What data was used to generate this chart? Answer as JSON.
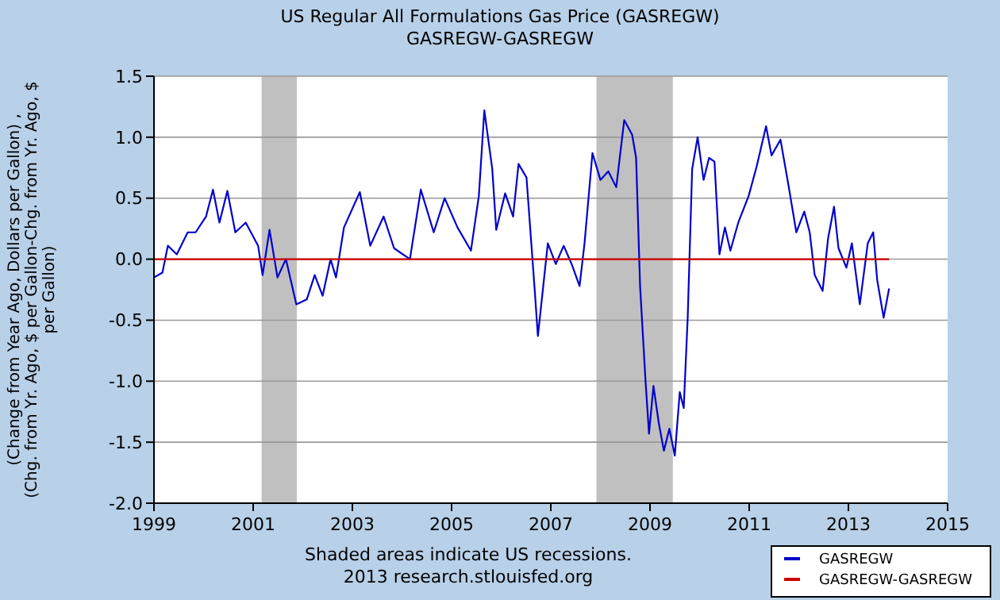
{
  "chart_data": {
    "type": "line",
    "title": "US Regular All Formulations Gas Price (GASREGW)",
    "subtitle": "GASREGW-GASREGW",
    "ylabel": "(Change from Year Ago, Dollars per Gallon) , (Chg. from Yr. Ago, $ per Gallon-Chg. from Yr. Ago, $ per Gallon)",
    "xlim": [
      1999,
      2015
    ],
    "xticks": [
      1999,
      2001,
      2003,
      2005,
      2007,
      2009,
      2011,
      2013,
      2015
    ],
    "ylim": [
      -2.0,
      1.5
    ],
    "yticks": [
      {
        "value": -2,
        "label": "-2.0"
      },
      {
        "value": -1.5,
        "label": "-1.5"
      },
      {
        "value": -1,
        "label": "-1.0"
      },
      {
        "value": -0.5,
        "label": "-0.5"
      },
      {
        "value": 0,
        "label": "0.0"
      },
      {
        "value": 0.5,
        "label": "0.5"
      },
      {
        "value": 1,
        "label": "1.0"
      },
      {
        "value": 1.5,
        "label": "1.5"
      }
    ],
    "grid": "y",
    "legend": "bottom right",
    "annotations": [
      "Shaded areas indicate US recessions.",
      "2013 research.stlouisfed.org"
    ],
    "bands": [
      {
        "axis": "x",
        "from": 2001.17,
        "to": 2001.88,
        "color": "#c0c0c0"
      },
      {
        "axis": "x",
        "from": 2007.92,
        "to": 2009.46,
        "color": "#c0c0c0"
      }
    ],
    "series": [
      {
        "name": "GASREGW",
        "color": "#0000cc",
        "x": [
          1999.0,
          1999.17,
          1999.28,
          1999.46,
          1999.68,
          1999.84,
          2000.05,
          2000.19,
          2000.32,
          2000.48,
          2000.64,
          2000.85,
          2001.1,
          2001.19,
          2001.33,
          2001.49,
          2001.66,
          2001.87,
          2002.08,
          2002.24,
          2002.4,
          2002.56,
          2002.67,
          2002.83,
          2003.15,
          2003.36,
          2003.63,
          2003.84,
          2004.16,
          2004.38,
          2004.64,
          2004.86,
          2005.12,
          2005.39,
          2005.55,
          2005.66,
          2005.82,
          2005.9,
          2006.08,
          2006.24,
          2006.35,
          2006.51,
          2006.67,
          2006.74,
          2006.94,
          2007.1,
          2007.26,
          2007.42,
          2007.58,
          2007.68,
          2007.84,
          2008.0,
          2008.16,
          2008.32,
          2008.48,
          2008.64,
          2008.72,
          2008.8,
          2008.91,
          2008.98,
          2009.07,
          2009.18,
          2009.28,
          2009.39,
          2009.5,
          2009.6,
          2009.68,
          2009.76,
          2009.85,
          2009.96,
          2010.08,
          2010.19,
          2010.3,
          2010.4,
          2010.51,
          2010.62,
          2010.78,
          2010.99,
          2011.15,
          2011.34,
          2011.45,
          2011.63,
          2011.79,
          2011.95,
          2012.11,
          2012.22,
          2012.32,
          2012.48,
          2012.59,
          2012.71,
          2012.8,
          2012.96,
          2013.07,
          2013.23,
          2013.39,
          2013.5,
          2013.58,
          2013.71,
          2013.82
        ],
        "values": [
          -0.15,
          -0.11,
          0.11,
          0.04,
          0.22,
          0.22,
          0.35,
          0.57,
          0.3,
          0.56,
          0.22,
          0.3,
          0.11,
          -0.13,
          0.24,
          -0.15,
          0.0,
          -0.37,
          -0.33,
          -0.13,
          -0.3,
          0.0,
          -0.15,
          0.26,
          0.55,
          0.11,
          0.35,
          0.09,
          0.0,
          0.57,
          0.22,
          0.5,
          0.26,
          0.07,
          0.52,
          1.22,
          0.74,
          0.24,
          0.54,
          0.35,
          0.78,
          0.67,
          -0.22,
          -0.63,
          0.13,
          -0.04,
          0.11,
          -0.04,
          -0.22,
          0.13,
          0.87,
          0.65,
          0.72,
          0.59,
          1.14,
          1.02,
          0.83,
          -0.22,
          -1.0,
          -1.43,
          -1.04,
          -1.35,
          -1.57,
          -1.39,
          -1.61,
          -1.09,
          -1.22,
          -0.48,
          0.74,
          1.0,
          0.65,
          0.83,
          0.8,
          0.04,
          0.26,
          0.07,
          0.3,
          0.52,
          0.76,
          1.09,
          0.85,
          0.98,
          0.61,
          0.22,
          0.39,
          0.22,
          -0.13,
          -0.26,
          0.17,
          0.43,
          0.09,
          -0.07,
          0.13,
          -0.37,
          0.13,
          0.22,
          -0.17,
          -0.48,
          -0.24
        ]
      },
      {
        "name": "GASREGW-GASREGW",
        "color": "#cc0000",
        "x": [
          1999.0,
          2013.82
        ],
        "values": [
          0,
          0
        ]
      }
    ]
  }
}
